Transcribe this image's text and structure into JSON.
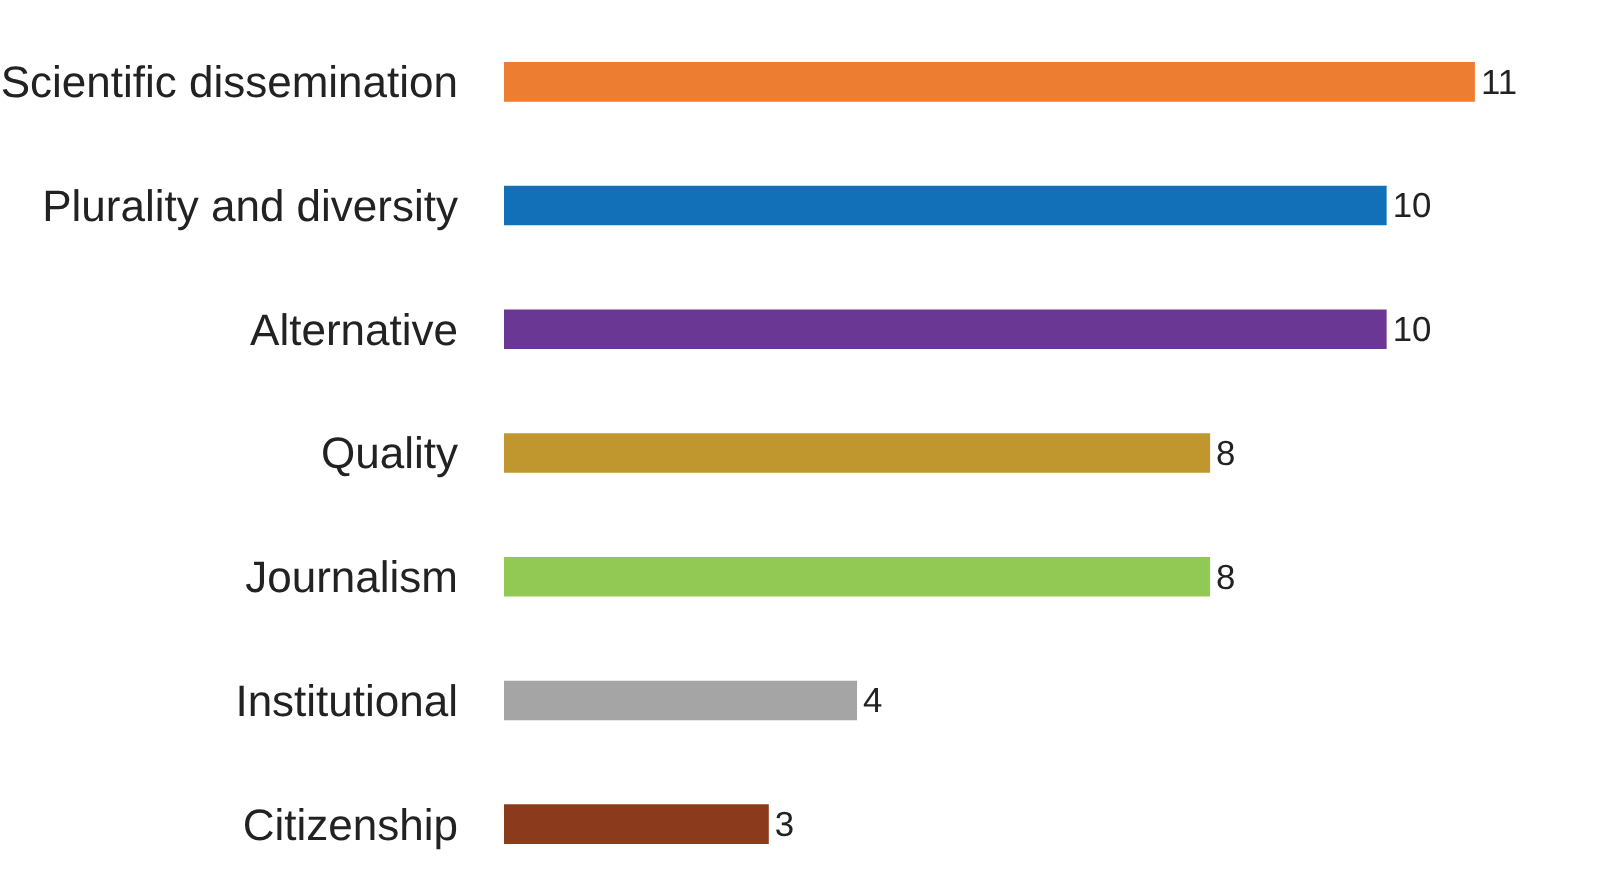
{
  "chart_data": {
    "type": "bar",
    "orientation": "horizontal",
    "categories": [
      "Scientific dissemination",
      "Plurality and diversity",
      "Alternative",
      "Quality",
      "Journalism",
      "Institutional",
      "Citizenship"
    ],
    "values": [
      11,
      10,
      10,
      8,
      8,
      4,
      3
    ],
    "colors": [
      "#ed7d31",
      "#1170b8",
      "#6a3795",
      "#c0962e",
      "#92c954",
      "#a5a5a5",
      "#8b3a1c"
    ],
    "data_labels": true
  }
}
